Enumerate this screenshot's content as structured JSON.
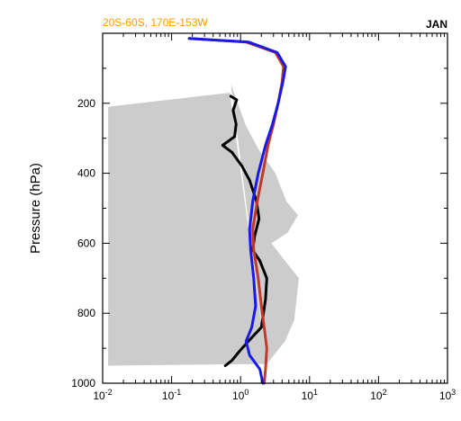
{
  "chart_data": {
    "type": "line",
    "region_label": "20S-60S, 170E-153W",
    "month_label": "JAN",
    "ylabel": "Pressure (hPa)",
    "xlabel": "",
    "x_scale": "log",
    "xlim": [
      0.01,
      1000
    ],
    "ylim": [
      1000,
      0
    ],
    "y_reversed": true,
    "x_ticks": [
      0.01,
      0.1,
      1,
      10,
      100,
      1000
    ],
    "x_tick_labels": [
      "10-2",
      "10-1",
      "100",
      "101",
      "102",
      "103"
    ],
    "y_ticks": [
      200,
      400,
      600,
      800,
      1000
    ],
    "y_tick_labels": [
      "200",
      "400",
      "600",
      "800",
      "1000"
    ],
    "colors": {
      "region_label": "#ff9900",
      "shading": "#cccccc",
      "black_series": "#000000",
      "red_series": "#c03a2b",
      "blue_series": "#1a1ae6"
    },
    "shaded_range": {
      "upper": [
        [
          0.72,
          145
        ],
        [
          0.95,
          210
        ],
        [
          1.2,
          265
        ],
        [
          1.8,
          330
        ],
        [
          3.2,
          400
        ],
        [
          4.6,
          480
        ],
        [
          6.8,
          520
        ],
        [
          4.8,
          570
        ],
        [
          2.8,
          600
        ],
        [
          4.2,
          645
        ],
        [
          7.0,
          700
        ],
        [
          6.0,
          820
        ],
        [
          4.4,
          880
        ],
        [
          2.4,
          945
        ]
      ],
      "lower": [
        [
          0.7,
          170
        ],
        [
          0.012,
          210
        ],
        [
          0.012,
          950
        ],
        [
          2.4,
          945
        ]
      ]
    },
    "series": [
      {
        "color": "black_series",
        "points": [
          [
            0.72,
            180
          ],
          [
            0.88,
            190
          ],
          [
            0.78,
            220
          ],
          [
            0.86,
            260
          ],
          [
            0.82,
            295
          ],
          [
            0.55,
            320
          ],
          [
            0.75,
            340
          ],
          [
            1.05,
            380
          ],
          [
            1.35,
            420
          ],
          [
            1.7,
            480
          ],
          [
            1.85,
            530
          ],
          [
            1.6,
            580
          ],
          [
            1.5,
            620
          ],
          [
            1.9,
            650
          ],
          [
            2.4,
            700
          ],
          [
            2.3,
            760
          ],
          [
            2.0,
            840
          ],
          [
            1.3,
            880
          ],
          [
            0.95,
            910
          ],
          [
            0.75,
            935
          ],
          [
            0.6,
            950
          ]
        ]
      },
      {
        "color": "red_series",
        "points": [
          [
            0.18,
            15
          ],
          [
            1.2,
            25
          ],
          [
            3.2,
            55
          ],
          [
            4.2,
            95
          ],
          [
            4.0,
            140
          ],
          [
            3.5,
            200
          ],
          [
            3.0,
            260
          ],
          [
            2.5,
            320
          ],
          [
            2.1,
            400
          ],
          [
            1.75,
            480
          ],
          [
            1.5,
            560
          ],
          [
            1.55,
            620
          ],
          [
            1.8,
            700
          ],
          [
            2.0,
            780
          ],
          [
            2.2,
            840
          ],
          [
            2.4,
            900
          ],
          [
            2.3,
            960
          ],
          [
            2.2,
            1000
          ]
        ]
      },
      {
        "color": "blue_series",
        "points": [
          [
            0.18,
            15
          ],
          [
            1.3,
            25
          ],
          [
            3.4,
            55
          ],
          [
            4.5,
            95
          ],
          [
            4.1,
            140
          ],
          [
            3.5,
            200
          ],
          [
            2.9,
            260
          ],
          [
            2.3,
            320
          ],
          [
            1.8,
            400
          ],
          [
            1.5,
            480
          ],
          [
            1.35,
            560
          ],
          [
            1.4,
            620
          ],
          [
            1.55,
            700
          ],
          [
            1.65,
            780
          ],
          [
            1.45,
            840
          ],
          [
            1.2,
            880
          ],
          [
            1.35,
            920
          ],
          [
            1.9,
            960
          ],
          [
            2.1,
            1000
          ]
        ]
      }
    ]
  }
}
